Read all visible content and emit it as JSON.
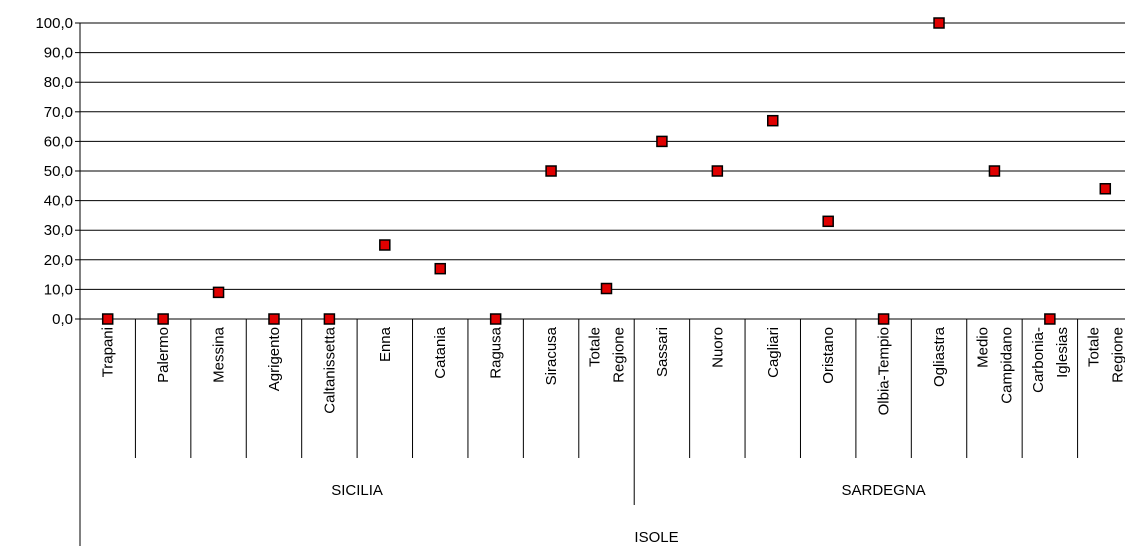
{
  "chart_data": {
    "type": "scatter",
    "ylim": [
      0,
      100
    ],
    "yticks": [
      0,
      10,
      20,
      30,
      40,
      50,
      60,
      70,
      80,
      90,
      100
    ],
    "ytick_labels": [
      "0,0",
      "10,0",
      "20,0",
      "30,0",
      "40,0",
      "50,0",
      "60,0",
      "70,0",
      "80,0",
      "90,0",
      "100,0"
    ],
    "grid": "horizontal",
    "legend": "none",
    "categories": [
      {
        "label": [
          "Trapani"
        ],
        "value": 0
      },
      {
        "label": [
          "Palermo"
        ],
        "value": 0
      },
      {
        "label": [
          "Messina"
        ],
        "value": 9
      },
      {
        "label": [
          "Agrigento"
        ],
        "value": 0
      },
      {
        "label": [
          "Caltanissetta"
        ],
        "value": 0
      },
      {
        "label": [
          "Enna"
        ],
        "value": 25
      },
      {
        "label": [
          "Catania"
        ],
        "value": 17
      },
      {
        "label": [
          "Ragusa"
        ],
        "value": 0
      },
      {
        "label": [
          "Siracusa"
        ],
        "value": 50
      },
      {
        "label": [
          "Totale",
          "Regione"
        ],
        "value": 10.3
      },
      {
        "label": [
          "Sassari"
        ],
        "value": 60
      },
      {
        "label": [
          "Nuoro"
        ],
        "value": 50
      },
      {
        "label": [
          "Cagliari"
        ],
        "value": 67
      },
      {
        "label": [
          "Oristano"
        ],
        "value": 33
      },
      {
        "label": [
          "Olbia-Tempio"
        ],
        "value": 0
      },
      {
        "label": [
          "Ogliastra"
        ],
        "value": 100
      },
      {
        "label": [
          "Medio",
          "Campidano"
        ],
        "value": 50
      },
      {
        "label": [
          "Carbonia-",
          "Iglesias"
        ],
        "value": 0
      },
      {
        "label": [
          "Totale",
          "Regione"
        ],
        "value": 44
      }
    ],
    "groups": [
      {
        "label": "SICILIA",
        "first": 0,
        "last": 9
      },
      {
        "label": "SARDEGNA",
        "first": 10,
        "last": 18
      }
    ],
    "top_group": "ISOLE",
    "marker_color": "#e00000",
    "marker_edge": "#000000",
    "grid_color": "#000000"
  }
}
